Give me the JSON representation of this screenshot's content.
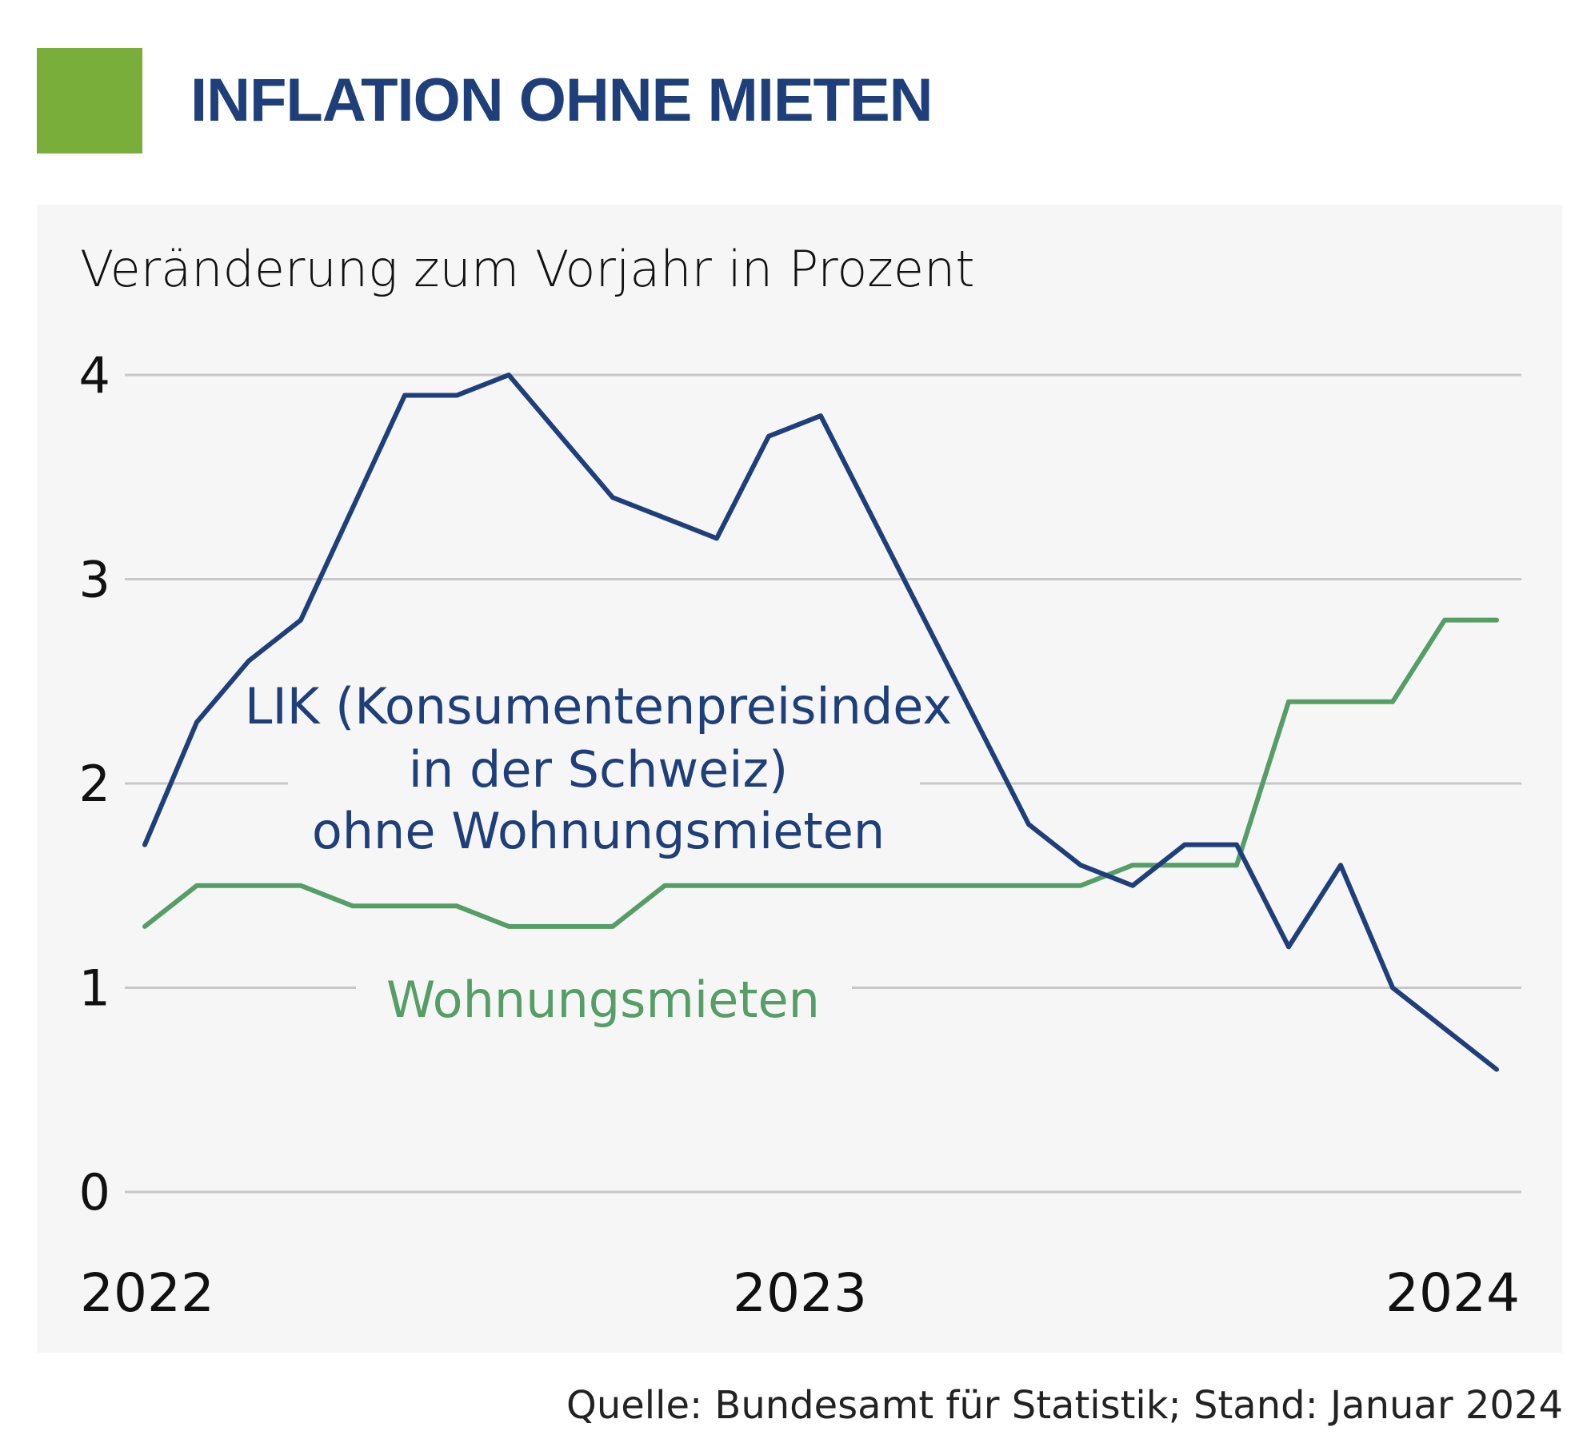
{
  "header": {
    "title": "INFLATION OHNE MIETEN",
    "accent_color": "#7aae3a"
  },
  "subtitle": "Veränderung zum Vorjahr in Prozent",
  "source": "Quelle: Bundesamt für Statistik; Stand: Januar 2024",
  "chart_data": {
    "type": "line",
    "title": "INFLATION OHNE MIETEN",
    "ylabel": "Veränderung zum Vorjahr in Prozent",
    "ylim": [
      0,
      4
    ],
    "yticks": [
      "0",
      "1",
      "2",
      "3",
      "4"
    ],
    "xticks": [
      "2022",
      "2023",
      "2024"
    ],
    "grid": true,
    "series": [
      {
        "name": "LIK (Konsumentenpreisindex in der Schweiz) ohne Wohnungsmieten",
        "label_lines": [
          "LIK (Konsumentenpreisindex",
          "in der Schweiz)",
          "ohne Wohnungsmieten"
        ],
        "color": "#1f3f7a",
        "values": [
          1.7,
          2.3,
          2.6,
          2.8,
          3.35,
          3.9,
          3.9,
          4.0,
          3.7,
          3.4,
          3.3,
          3.2,
          3.7,
          3.8,
          3.3,
          2.8,
          2.3,
          1.8,
          1.6,
          1.5,
          1.7,
          1.7,
          1.2,
          1.6,
          1.0,
          0.8,
          0.6
        ]
      },
      {
        "name": "Wohnungsmieten",
        "label_lines": [
          "Wohnungsmieten"
        ],
        "color": "#559e66",
        "values": [
          1.3,
          1.5,
          1.5,
          1.5,
          1.4,
          1.4,
          1.4,
          1.3,
          1.3,
          1.3,
          1.5,
          1.5,
          1.5,
          1.5,
          1.5,
          1.5,
          1.5,
          1.5,
          1.5,
          1.6,
          1.6,
          1.6,
          2.4,
          2.4,
          2.4,
          2.8,
          2.8
        ]
      }
    ]
  }
}
